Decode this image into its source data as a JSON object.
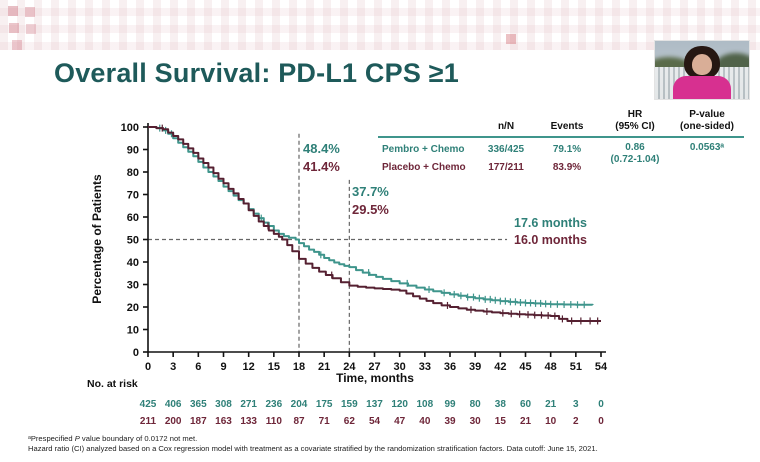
{
  "slide": {
    "title": "Overall Survival: PD-L1 CPS ≥1"
  },
  "colors": {
    "pembro": "#3f958c",
    "placebo": "#552031",
    "pembro_text": "#2f8078",
    "placebo_text": "#6e2639",
    "title_teal": "#1e5a5a",
    "table_rule": "#3f958c"
  },
  "stats_table": {
    "headers": {
      "nn": "n/N",
      "events": "Events",
      "hr_line1": "HR",
      "hr_line2": "(95% CI)",
      "p_line1": "P-value",
      "p_line2": "(one-sided)"
    },
    "rows": [
      {
        "label": "Pembro + Chemo",
        "nn": "336/425",
        "events": "79.1%"
      },
      {
        "label": "Placebo + Chemo",
        "nn": "177/211",
        "events": "83.9%"
      }
    ],
    "hr_value": "0.86",
    "hr_ci": "(0.72-1.04)",
    "p_value": "0.0563ᵃ"
  },
  "annotations": {
    "pembro_18mo": "48.4%",
    "placebo_18mo": "41.4%",
    "pembro_24mo": "37.7%",
    "placebo_24mo": "29.5%",
    "pembro_median": "17.6 months",
    "placebo_median": "16.0 months"
  },
  "chart_data": {
    "type": "line",
    "subtype": "kaplan-meier-step",
    "title": "Overall Survival: PD-L1 CPS ≥1",
    "xlabel": "Time, months",
    "ylabel": "Percentage of Patients",
    "xlim": [
      0,
      54
    ],
    "ylim": [
      0,
      100
    ],
    "xticks": [
      0,
      3,
      6,
      9,
      12,
      15,
      18,
      21,
      24,
      27,
      30,
      33,
      36,
      39,
      42,
      45,
      48,
      51,
      54
    ],
    "yticks": [
      0,
      10,
      20,
      30,
      40,
      50,
      60,
      70,
      80,
      90,
      100
    ],
    "grid": false,
    "reference_lines": {
      "vertical": [
        {
          "month": 18,
          "top_pct": 97
        },
        {
          "month": 24,
          "top_pct": 76.5
        }
      ],
      "horizontal": {
        "pct": 50,
        "x_end_month": 42.8
      }
    },
    "series": [
      {
        "name": "Pembro + Chemo",
        "color": "#3f958c",
        "median_months": 17.6,
        "rate_18mo_pct": 48.4,
        "rate_24mo_pct": 37.7,
        "points": [
          [
            0,
            100
          ],
          [
            1,
            99.5
          ],
          [
            1.8,
            98.5
          ],
          [
            2.4,
            97
          ],
          [
            3,
            95
          ],
          [
            3.6,
            93
          ],
          [
            4.2,
            91
          ],
          [
            4.8,
            89
          ],
          [
            5.4,
            87
          ],
          [
            6,
            84.5
          ],
          [
            6.6,
            82
          ],
          [
            7.2,
            80
          ],
          [
            7.8,
            78
          ],
          [
            8.4,
            76
          ],
          [
            9,
            73.5
          ],
          [
            9.6,
            71.5
          ],
          [
            10.2,
            69.5
          ],
          [
            10.8,
            67.5
          ],
          [
            11.4,
            66
          ],
          [
            12,
            63.5
          ],
          [
            12.6,
            61.5
          ],
          [
            13.2,
            59.5
          ],
          [
            13.8,
            57.5
          ],
          [
            14.4,
            56
          ],
          [
            15,
            54
          ],
          [
            15.6,
            52.5
          ],
          [
            16.2,
            51.5
          ],
          [
            16.8,
            50.8
          ],
          [
            17.6,
            50
          ],
          [
            18,
            48.4
          ],
          [
            18.6,
            47
          ],
          [
            19.2,
            45.5
          ],
          [
            19.8,
            44.5
          ],
          [
            20.4,
            43.2
          ],
          [
            21,
            41.8
          ],
          [
            21.6,
            40.8
          ],
          [
            22.2,
            39.8
          ],
          [
            22.8,
            39
          ],
          [
            23.4,
            38.3
          ],
          [
            24,
            37.7
          ],
          [
            24.8,
            36.4
          ],
          [
            25.6,
            35.3
          ],
          [
            26.4,
            34.3
          ],
          [
            27.2,
            33.4
          ],
          [
            28,
            32.5
          ],
          [
            29,
            31.5
          ],
          [
            30,
            30.5
          ],
          [
            31,
            29.5
          ],
          [
            32,
            28.6
          ],
          [
            33,
            27.8
          ],
          [
            34,
            27
          ],
          [
            35,
            26.3
          ],
          [
            36,
            25.6
          ],
          [
            37,
            25
          ],
          [
            38,
            24.4
          ],
          [
            39,
            23.9
          ],
          [
            40,
            23.4
          ],
          [
            41,
            23
          ],
          [
            42,
            22.6
          ],
          [
            43,
            22.3
          ],
          [
            44,
            22
          ],
          [
            45,
            21.8
          ],
          [
            46,
            21.6
          ],
          [
            47,
            21.4
          ],
          [
            48,
            21.2
          ],
          [
            49.5,
            21.1
          ],
          [
            51,
            21
          ],
          [
            53,
            20.9
          ]
        ],
        "censor_times": [
          1.4,
          2.1,
          2.8,
          13.5,
          20.6,
          26.3,
          30.9,
          33.5,
          35.3,
          36.5,
          37.3,
          38.1,
          38.8,
          39.5,
          40.2,
          40.8,
          41.4,
          42,
          42.6,
          43.2,
          43.8,
          44.4,
          45,
          45.6,
          46.2,
          46.8,
          47.4,
          48,
          48.8,
          49.6,
          50.4,
          51.2,
          52
        ]
      },
      {
        "name": "Placebo + Chemo",
        "color": "#552031",
        "median_months": 16.0,
        "rate_18mo_pct": 41.4,
        "rate_24mo_pct": 29.5,
        "points": [
          [
            0,
            100
          ],
          [
            1,
            99.5
          ],
          [
            1.8,
            99
          ],
          [
            2.4,
            97.5
          ],
          [
            3,
            96
          ],
          [
            3.6,
            94.5
          ],
          [
            4.2,
            92.5
          ],
          [
            4.8,
            90.5
          ],
          [
            5.4,
            88.5
          ],
          [
            6,
            86
          ],
          [
            6.6,
            84
          ],
          [
            7.2,
            82
          ],
          [
            7.8,
            79.5
          ],
          [
            8.4,
            77
          ],
          [
            9,
            75
          ],
          [
            9.6,
            72.5
          ],
          [
            10.2,
            70.5
          ],
          [
            10.8,
            68
          ],
          [
            11.4,
            66
          ],
          [
            12,
            63
          ],
          [
            12.6,
            60.5
          ],
          [
            13.2,
            58
          ],
          [
            13.8,
            56
          ],
          [
            14.4,
            54
          ],
          [
            15,
            52.5
          ],
          [
            15.6,
            51.2
          ],
          [
            16,
            50
          ],
          [
            16.6,
            47.5
          ],
          [
            17.2,
            44.8
          ],
          [
            18,
            41.4
          ],
          [
            18.8,
            39.3
          ],
          [
            19.6,
            37.4
          ],
          [
            20.4,
            35.7
          ],
          [
            21.2,
            34.2
          ],
          [
            22,
            32.8
          ],
          [
            23,
            31
          ],
          [
            24,
            29.5
          ],
          [
            25,
            29
          ],
          [
            26,
            28.6
          ],
          [
            27,
            28.3
          ],
          [
            28,
            28
          ],
          [
            29,
            27.7
          ],
          [
            30,
            27.3
          ],
          [
            30.8,
            26
          ],
          [
            31.6,
            24.8
          ],
          [
            32.4,
            23.7
          ],
          [
            33.2,
            22.7
          ],
          [
            34,
            21.7
          ],
          [
            35,
            20.7
          ],
          [
            36,
            20
          ],
          [
            37,
            19.4
          ],
          [
            38,
            18.8
          ],
          [
            39,
            18.4
          ],
          [
            40,
            18
          ],
          [
            41,
            17.6
          ],
          [
            42,
            17.3
          ],
          [
            43,
            17
          ],
          [
            44,
            16.8
          ],
          [
            45,
            16.6
          ],
          [
            46,
            16.4
          ],
          [
            47,
            16.2
          ],
          [
            48,
            16
          ],
          [
            49,
            14.7
          ],
          [
            50,
            13.8
          ],
          [
            52,
            13.8
          ],
          [
            54,
            13.8
          ]
        ],
        "censor_times": [
          1.7,
          14.3,
          21.9,
          35.7,
          38.5,
          40.4,
          42.3,
          43.3,
          44.3,
          45.3,
          46.1,
          46.9,
          47.7,
          48.5,
          49.4,
          50.5,
          51.6,
          52.7,
          53.6
        ]
      }
    ]
  },
  "risk_table": {
    "label": "No. at risk",
    "rows": [
      {
        "name": "Pembro + Chemo",
        "color": "#2f8078",
        "values": [
          "425",
          "406",
          "365",
          "308",
          "271",
          "236",
          "204",
          "175",
          "159",
          "137",
          "120",
          "108",
          "99",
          "80",
          "38",
          "60",
          "21",
          "3",
          "0"
        ]
      },
      {
        "name": "Placebo + Chemo",
        "color": "#6e2639",
        "values": [
          "211",
          "200",
          "187",
          "163",
          "133",
          "110",
          "87",
          "71",
          "62",
          "54",
          "47",
          "40",
          "39",
          "30",
          "15",
          "21",
          "10",
          "2",
          "0"
        ]
      }
    ]
  },
  "footnotes": {
    "sup": "ᵃ",
    "f1_pre": "Prespecified ",
    "f1_italic": "P",
    "f1_rest": " value boundary of 0.0172 not met.",
    "f2": "Hazard ratio (CI) analyzed based on a Cox regression model with treatment as a covariate stratified by the randomization stratification factors. Data cutoff: June 15, 2021."
  }
}
